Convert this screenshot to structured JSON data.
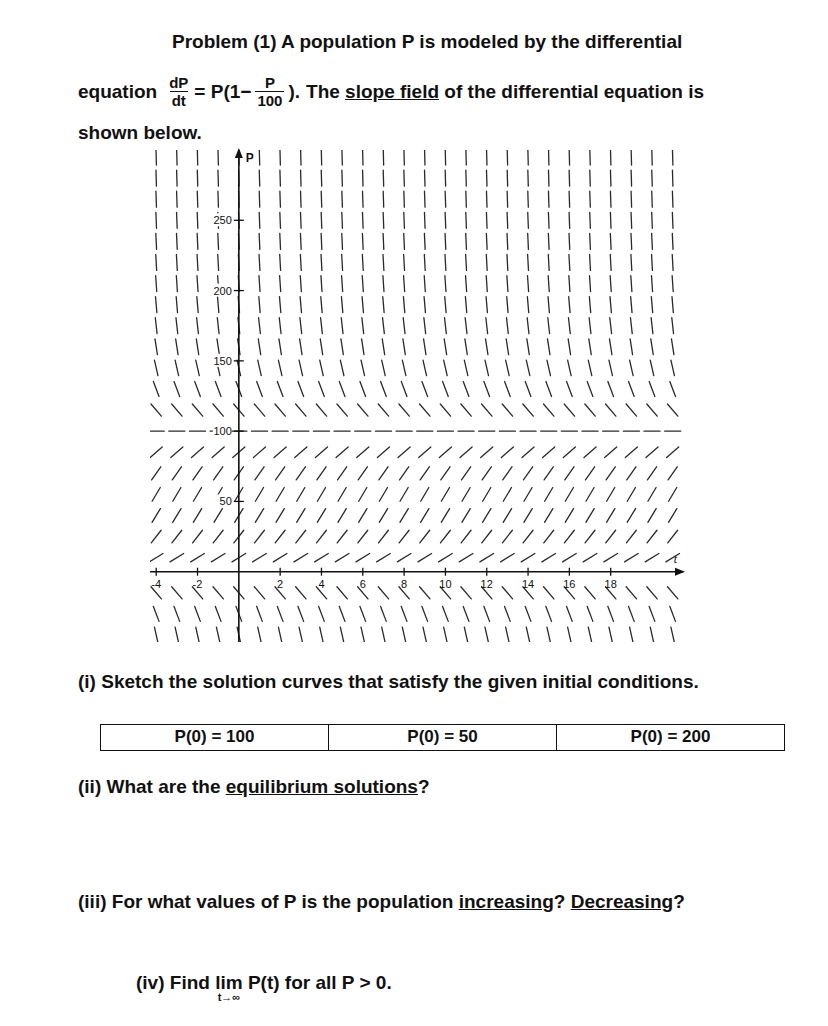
{
  "problem": {
    "line1": "Problem (1) A population P is modeled by the differential",
    "equation_word": "equation",
    "eq_lhs_num": "dP",
    "eq_lhs_den": "dt",
    "eq_mid": "= P(1−",
    "eq_frac_num": "P",
    "eq_frac_den": "100",
    "eq_end": ").",
    "after_parts": [
      {
        "text": "The "
      },
      {
        "text": "slope field",
        "underline": true
      },
      {
        "text": " of the differential equation is"
      }
    ],
    "line3": "shown below."
  },
  "chart_data": {
    "type": "slope_field",
    "x_label": "t",
    "y_label": "P",
    "x": [
      -4,
      -3,
      -2,
      -1,
      0,
      1,
      2,
      3,
      4,
      5,
      6,
      7,
      8,
      9,
      10,
      11,
      12,
      13,
      14,
      15,
      16,
      17,
      18,
      19,
      20,
      21
    ],
    "y": [
      -45,
      -30,
      -15,
      10,
      25,
      40,
      55,
      70,
      85,
      100,
      115,
      130,
      145,
      160,
      175,
      190,
      205,
      220,
      235,
      250,
      265,
      280,
      295
    ],
    "slopes": [
      -65.25,
      -39,
      -17.25,
      9,
      18.75,
      24,
      24.75,
      21,
      12.75,
      0,
      -17.25,
      -39,
      -65.25,
      -96,
      -131.25,
      -171,
      -215.25,
      -264,
      -317.25,
      -375,
      -437.25,
      -504,
      -575.25
    ],
    "xlim": [
      -4.3,
      21.5
    ],
    "ylim": [
      -50,
      300
    ],
    "xticks": [
      -4,
      -2,
      2,
      4,
      6,
      8,
      10,
      12,
      14,
      16,
      18
    ],
    "yticks": [
      50,
      100,
      150,
      200,
      250
    ]
  },
  "questions": [
    {
      "parts": [
        {
          "text": "(i) Sketch the solution curves that satisfy the given initial conditions."
        }
      ]
    },
    {
      "parts": [
        {
          "text": "(ii) What are the "
        },
        {
          "text": "equilibrium solutions",
          "underline": true
        },
        {
          "text": "?"
        }
      ]
    },
    {
      "parts": [
        {
          "text": "(iii) For what values of P is the population "
        },
        {
          "text": "increasing",
          "underline": true
        },
        {
          "text": "? "
        },
        {
          "text": "Decreasing",
          "underline": true
        },
        {
          "text": "?"
        }
      ]
    },
    {
      "parts": [
        {
          "text": "(iv) Find "
        },
        {
          "text": "lim",
          "subscript": "t→∞"
        },
        {
          "text": " P(t) for all P > 0."
        }
      ]
    }
  ],
  "initial_conditions": [
    "P(0) = 100",
    "P(0) = 50",
    "P(0) = 200"
  ]
}
